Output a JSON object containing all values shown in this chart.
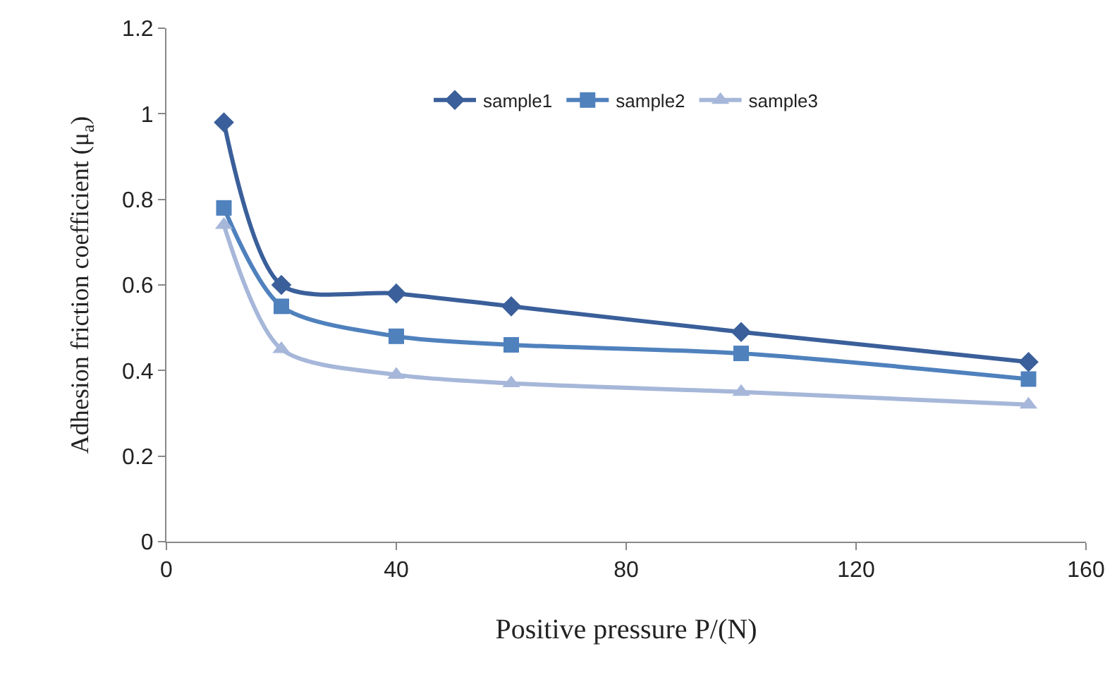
{
  "chart_data": {
    "type": "line",
    "xlabel": "Positive pressure P/(N)",
    "ylabel": "Adhesion friction coefficient (μ$_{a}$)",
    "x": [
      10,
      20,
      40,
      60,
      100,
      150
    ],
    "series": [
      {
        "name": "sample1",
        "color": "#3a5f9a",
        "marker": "diamond",
        "values": [
          0.98,
          0.6,
          0.58,
          0.55,
          0.49,
          0.42
        ]
      },
      {
        "name": "sample2",
        "color": "#4f81bd",
        "marker": "square",
        "values": [
          0.78,
          0.55,
          0.48,
          0.46,
          0.44,
          0.38
        ]
      },
      {
        "name": "sample3",
        "color": "#a6b7d9",
        "marker": "triangle",
        "values": [
          0.74,
          0.45,
          0.39,
          0.37,
          0.35,
          0.32
        ]
      }
    ],
    "xlim": [
      0,
      160
    ],
    "xticks": [
      0,
      40,
      80,
      120,
      160
    ],
    "ylim": [
      0,
      1.2
    ],
    "yticks": [
      0,
      0.2,
      0.4,
      0.6,
      0.8,
      1,
      1.2
    ],
    "grid": false,
    "legend": "top",
    "line_style": "solid"
  }
}
